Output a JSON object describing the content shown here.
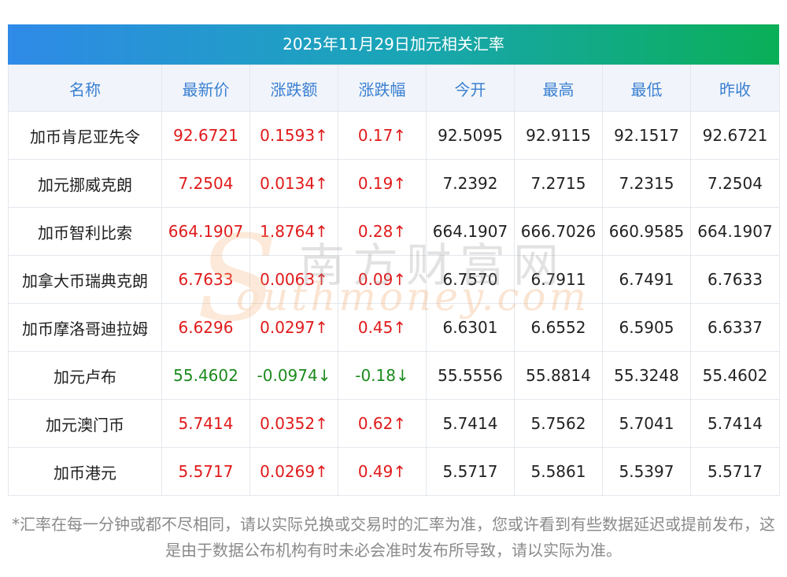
{
  "title": "2025年11月29日加元相关汇率",
  "headers": [
    "名称",
    "最新价",
    "涨跌额",
    "涨跌幅",
    "今开",
    "最高",
    "最低",
    "昨收"
  ],
  "rows": [
    {
      "name": "加币肯尼亚先令",
      "latest": "92.6721",
      "change": "0.1593↑",
      "pct": "0.17↑",
      "open": "92.5095",
      "high": "92.9115",
      "low": "92.1517",
      "prev": "92.6721",
      "dir": "up"
    },
    {
      "name": "加元挪威克朗",
      "latest": "7.2504",
      "change": "0.0134↑",
      "pct": "0.19↑",
      "open": "7.2392",
      "high": "7.2715",
      "low": "7.2315",
      "prev": "7.2504",
      "dir": "up"
    },
    {
      "name": "加币智利比索",
      "latest": "664.1907",
      "change": "1.8764↑",
      "pct": "0.28↑",
      "open": "664.1907",
      "high": "666.7026",
      "low": "660.9585",
      "prev": "664.1907",
      "dir": "up"
    },
    {
      "name": "加拿大币瑞典克朗",
      "latest": "6.7633",
      "change": "0.0063↑",
      "pct": "0.09↑",
      "open": "6.7570",
      "high": "6.7911",
      "low": "6.7491",
      "prev": "6.7633",
      "dir": "up"
    },
    {
      "name": "加币摩洛哥迪拉姆",
      "latest": "6.6296",
      "change": "0.0297↑",
      "pct": "0.45↑",
      "open": "6.6301",
      "high": "6.6552",
      "low": "6.5905",
      "prev": "6.6337",
      "dir": "up"
    },
    {
      "name": "加元卢布",
      "latest": "55.4602",
      "change": "-0.0974↓",
      "pct": "-0.18↓",
      "open": "55.5556",
      "high": "55.8814",
      "low": "55.3248",
      "prev": "55.4602",
      "dir": "down"
    },
    {
      "name": "加元澳门币",
      "latest": "5.7414",
      "change": "0.0352↑",
      "pct": "0.62↑",
      "open": "5.7414",
      "high": "5.7562",
      "low": "5.7041",
      "prev": "5.7414",
      "dir": "up"
    },
    {
      "name": "加币港元",
      "latest": "5.5717",
      "change": "0.0269↑",
      "pct": "0.49↑",
      "open": "5.5717",
      "high": "5.5861",
      "low": "5.5397",
      "prev": "5.5717",
      "dir": "up"
    }
  ],
  "watermark": {
    "cn": "南方财富网",
    "en": "outhmoney.com",
    "s": "S"
  },
  "footnote": "*汇率在每一分钟或都不尽相同，请以实际兑换或交易时的汇率为准，您或许看到有些数据延迟或提前发布，这是由于数据公布机构有时未必会准时发布所导致，请以实际为准。",
  "colors": {
    "up": "#e01a1a",
    "down": "#1b8a1b",
    "header_text": "#3a7fd0",
    "title_gradient_start": "#2f8ae8",
    "title_gradient_end": "#0aaf57"
  }
}
